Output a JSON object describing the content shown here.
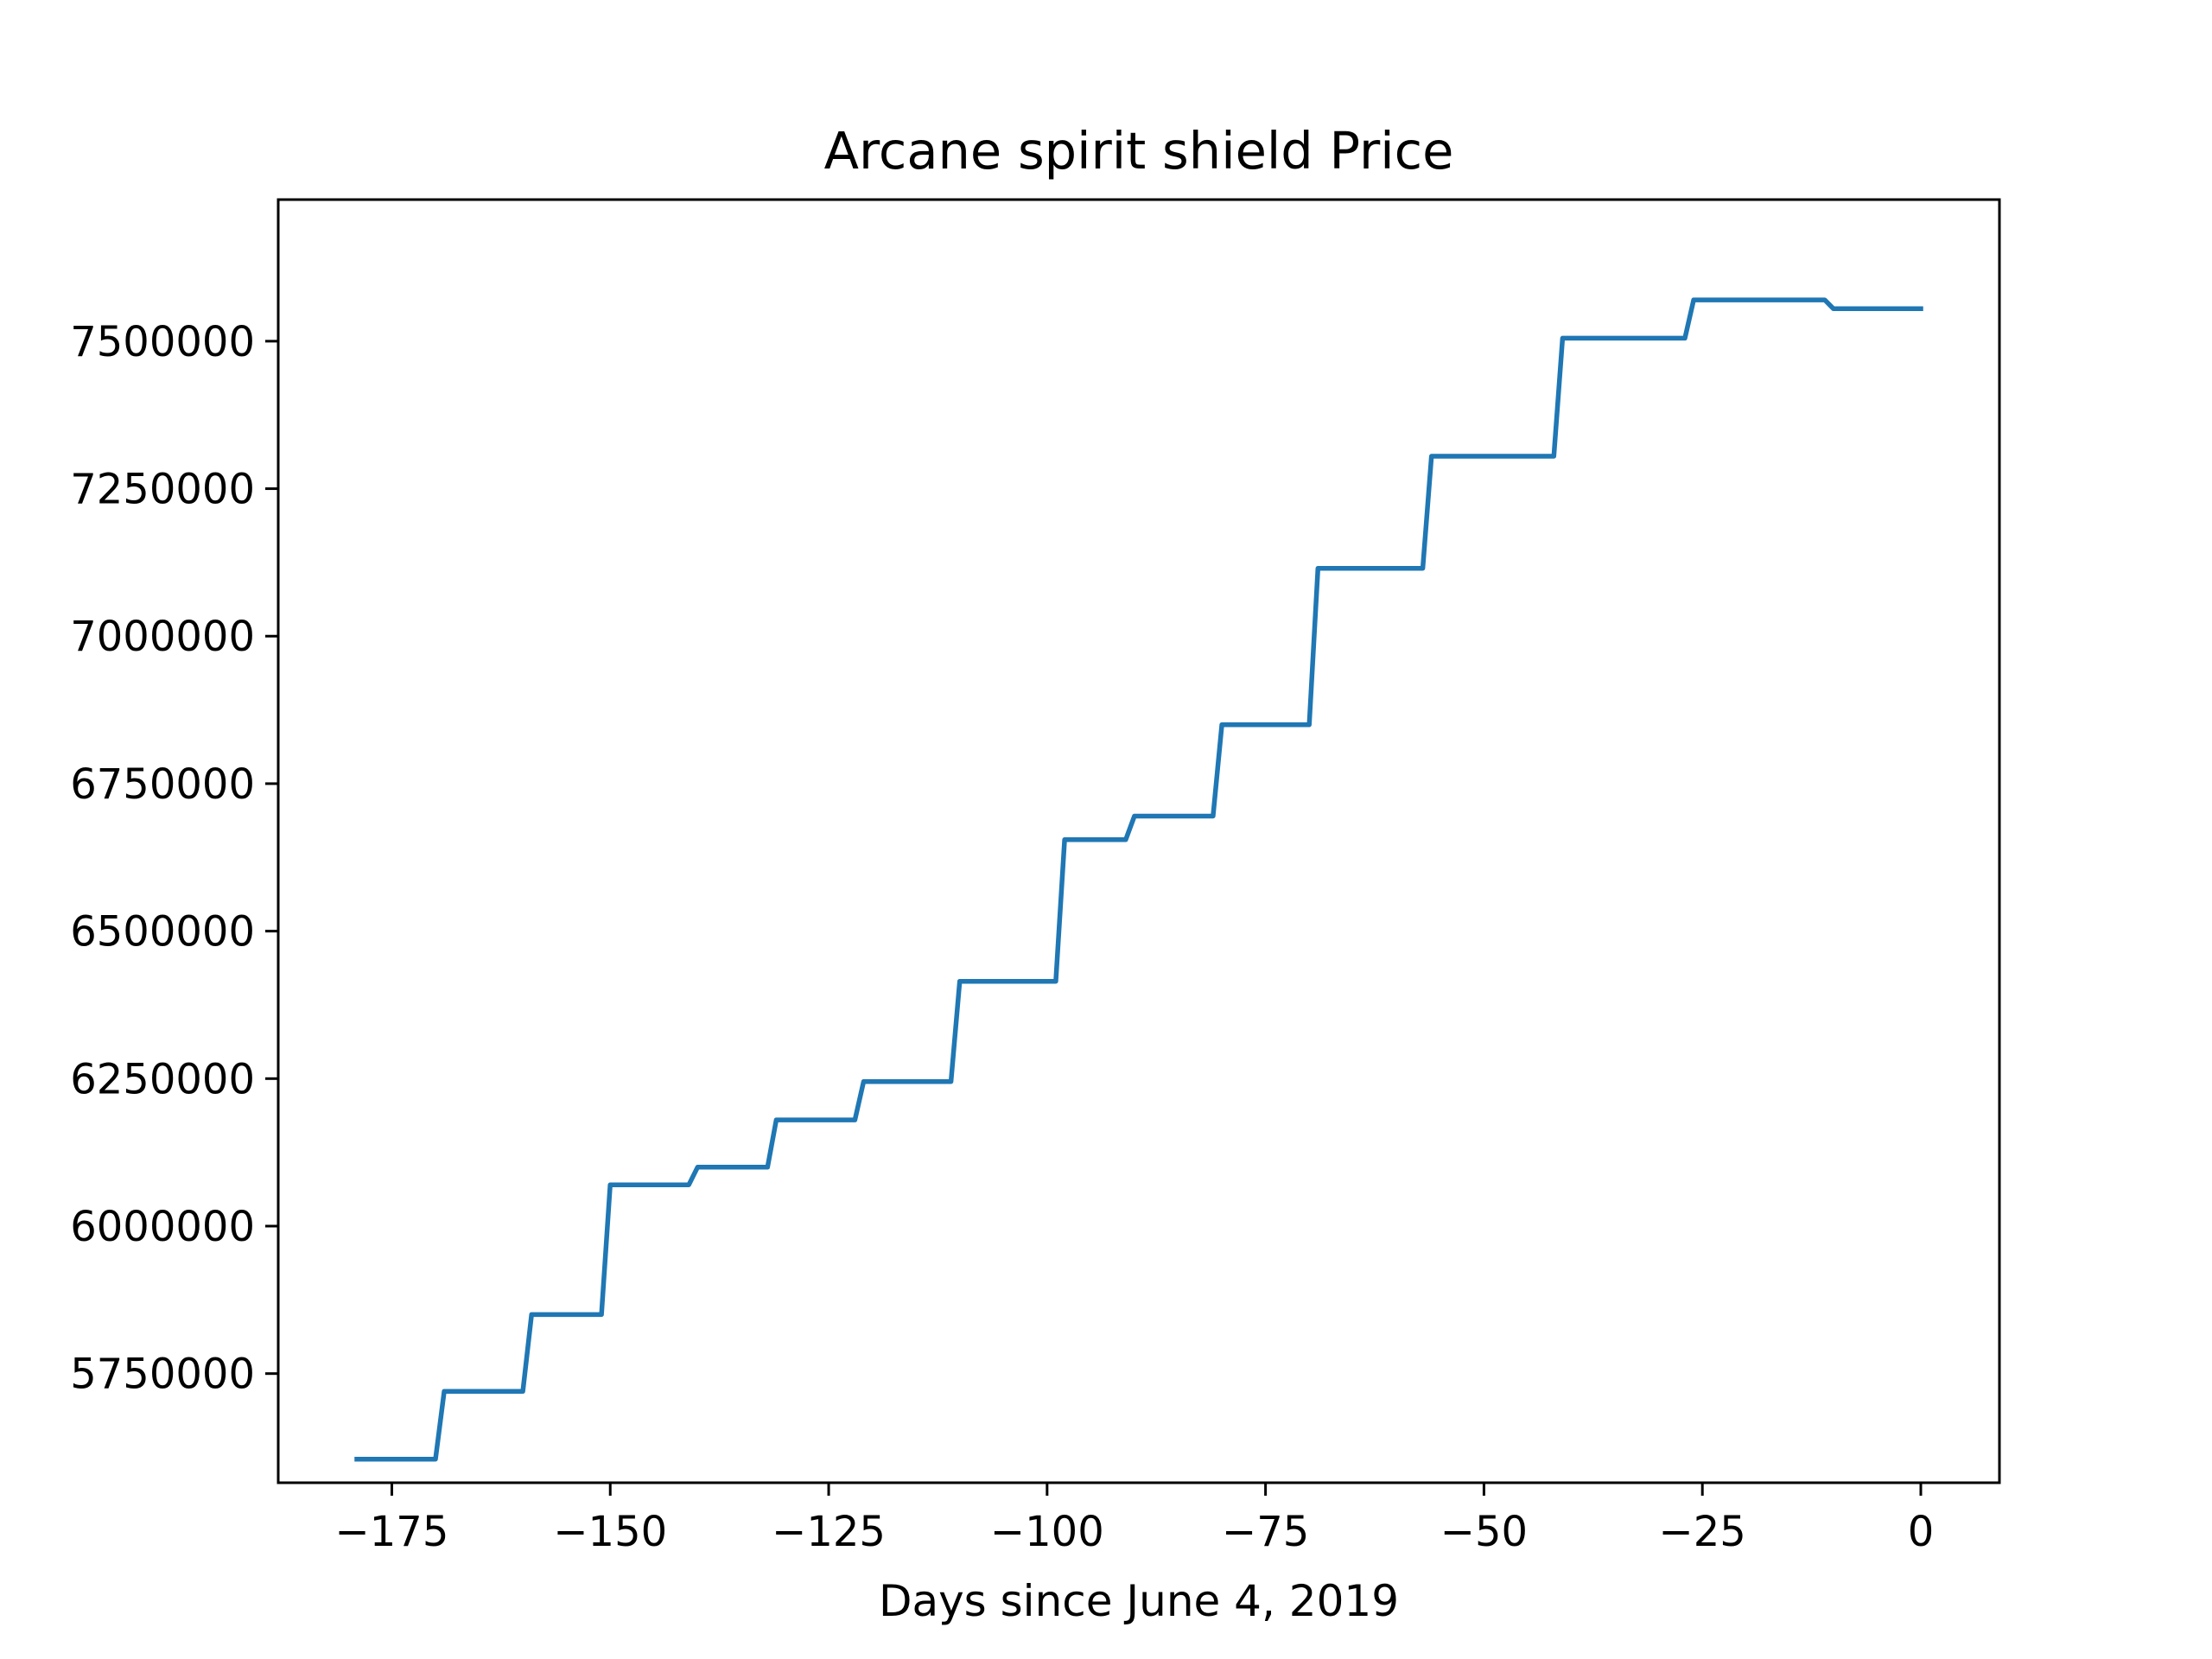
{
  "chart_data": {
    "type": "line",
    "title": "Arcane spirit shield Price",
    "xlabel": "Days since June 4, 2019",
    "ylabel": "",
    "xlim": [
      -188,
      9
    ],
    "ylim": [
      5565000,
      7740000
    ],
    "xticks": [
      -175,
      -150,
      -125,
      -100,
      -75,
      -50,
      -25,
      0
    ],
    "xtick_labels": [
      "−175",
      "−150",
      "−125",
      "−100",
      "−75",
      "−50",
      "−25",
      "0"
    ],
    "yticks": [
      5750000,
      6000000,
      6250000,
      6500000,
      6750000,
      7000000,
      7250000,
      7500000
    ],
    "ytick_labels": [
      "5750000",
      "6000000",
      "6250000",
      "6500000",
      "6750000",
      "7000000",
      "7250000",
      "7500000"
    ],
    "grid": false,
    "series": [
      {
        "color": "#1f77b4",
        "x": [
          -179,
          -170,
          -169,
          -160,
          -159,
          -151,
          -150,
          -141,
          -140,
          -132,
          -131,
          -122,
          -121,
          -111,
          -110,
          -99,
          -98,
          -91,
          -90,
          -81,
          -80,
          -70,
          -69,
          -57,
          -56,
          -42,
          -41,
          -27,
          -26,
          -11,
          -10,
          0
        ],
        "y": [
          5605000,
          5605000,
          5720000,
          5720000,
          5850000,
          5850000,
          6070000,
          6070000,
          6100000,
          6100000,
          6180000,
          6180000,
          6245000,
          6245000,
          6415000,
          6415000,
          6655000,
          6655000,
          6695000,
          6695000,
          6850000,
          6850000,
          7115000,
          7115000,
          7305000,
          7305000,
          7505000,
          7505000,
          7570000,
          7570000,
          7555000,
          7555000
        ]
      }
    ]
  }
}
